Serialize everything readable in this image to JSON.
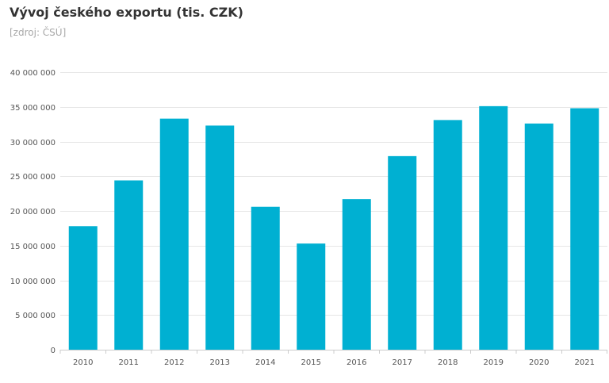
{
  "title": "Vývoj českého exportu (tis. CZK)",
  "source": "[zdroj: ČSÚ]",
  "colors": {
    "bar": "#00b0d2",
    "grid": "#e6e6e6",
    "axis": "#cccccc",
    "title": "#333333",
    "source": "#a8a8a8",
    "tick": "#555555"
  },
  "chart_data": {
    "type": "bar",
    "categories": [
      "2010",
      "2011",
      "2012",
      "2013",
      "2014",
      "2015",
      "2016",
      "2017",
      "2018",
      "2019",
      "2020",
      "2021"
    ],
    "values": [
      17800000,
      24400000,
      33300000,
      32300000,
      20600000,
      15300000,
      21700000,
      27900000,
      33100000,
      35100000,
      32600000,
      34800000
    ],
    "ylim": [
      0,
      40000000
    ],
    "yticks": [
      0,
      5000000,
      10000000,
      15000000,
      20000000,
      25000000,
      30000000,
      35000000,
      40000000
    ],
    "ytick_labels": [
      "0",
      "5 000 000",
      "10 000 000",
      "15 000 000",
      "20 000 000",
      "25 000 000",
      "30 000 000",
      "35 000 000",
      "40 000 000"
    ],
    "grid": true,
    "legend": "none"
  }
}
